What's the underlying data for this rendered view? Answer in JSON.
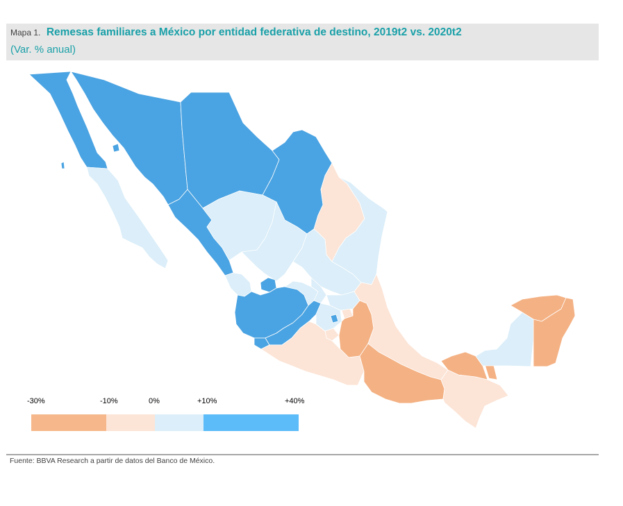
{
  "header": {
    "prefix": "Mapa 1.",
    "title": "Remesas familiares a México por entidad federativa de destino, 2019t2 vs. 2020t2",
    "subtitle": "(Var. % anual)"
  },
  "legend": {
    "ticks": [
      "-30%",
      "-10%",
      "0%",
      "+10%",
      "+40%"
    ],
    "bins": [
      {
        "range": "-30% a -10%",
        "color": "#f6b88a"
      },
      {
        "range": "-10% a 0%",
        "color": "#fce4d6"
      },
      {
        "range": "0% a +10%",
        "color": "#dbeef9"
      },
      {
        "range": "+10% a +40%",
        "color": "#5bbcf9"
      }
    ]
  },
  "map": {
    "colors": {
      "strong_positive": "#4aa3e2",
      "mild_positive": "#dbeef9",
      "mild_negative": "#fce4d6",
      "strong_negative": "#f4b183"
    }
  },
  "footer": {
    "source": "Fuente: BBVA Research a partir de datos del Banco de México."
  }
}
